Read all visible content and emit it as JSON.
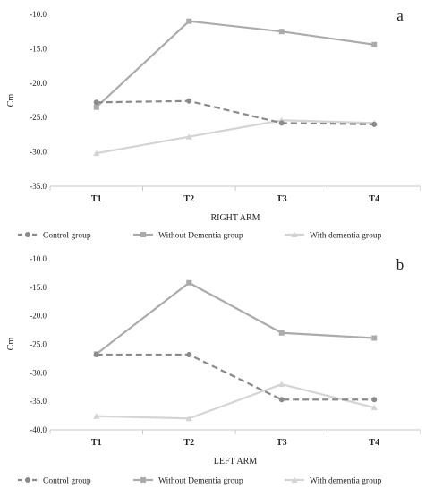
{
  "colors": {
    "control": "#8a8a8a",
    "without_dementia": "#ababab",
    "with_dementia": "#d4d4d4",
    "axis": "#c8c8c8",
    "text": "#222222"
  },
  "chart_data": [
    {
      "type": "line",
      "panel_label": "a",
      "xlabel": "RIGHT ARM",
      "ylabel": "Cm",
      "categories": [
        "T1",
        "T2",
        "T3",
        "T4"
      ],
      "ylim": [
        -35,
        -10
      ],
      "yticks": [
        -10,
        -15,
        -20,
        -25,
        -30,
        -35
      ],
      "ytick_labels": [
        "-10.0",
        "-15.0",
        "-20.0",
        "-25.0",
        "-30.0",
        "-35.0"
      ],
      "grid": false,
      "legend_position": "bottom",
      "series": [
        {
          "name": "Control group",
          "values": [
            -22.8,
            -22.6,
            -25.8,
            -26.0
          ],
          "marker": "circle",
          "style": "dashed",
          "color": "#8a8a8a"
        },
        {
          "name": "Without Dementia group",
          "values": [
            -23.5,
            -11.0,
            -12.5,
            -14.4
          ],
          "marker": "square",
          "style": "solid",
          "color": "#ababab"
        },
        {
          "name": "With dementia group",
          "values": [
            -30.2,
            -27.8,
            -25.4,
            -25.8
          ],
          "marker": "triangle",
          "style": "solid",
          "color": "#d4d4d4"
        }
      ]
    },
    {
      "type": "line",
      "panel_label": "b",
      "xlabel": "LEFT ARM",
      "ylabel": "Cm",
      "categories": [
        "T1",
        "T2",
        "T3",
        "T4"
      ],
      "ylim": [
        -40,
        -10
      ],
      "yticks": [
        -10,
        -15,
        -20,
        -25,
        -30,
        -35,
        -40
      ],
      "ytick_labels": [
        "-10.0",
        "-15.0",
        "-20.0",
        "-25.0",
        "-30.0",
        "-35.0",
        "-40.0"
      ],
      "grid": false,
      "legend_position": "bottom",
      "series": [
        {
          "name": "Control group",
          "values": [
            -26.8,
            -26.8,
            -34.7,
            -34.7
          ],
          "marker": "circle",
          "style": "dashed",
          "color": "#8a8a8a"
        },
        {
          "name": "Without Dementia group",
          "values": [
            -26.7,
            -14.2,
            -23.0,
            -23.9
          ],
          "marker": "square",
          "style": "solid",
          "color": "#ababab"
        },
        {
          "name": "With dementia group",
          "values": [
            -37.6,
            -38.0,
            -32.0,
            -36.1
          ],
          "marker": "triangle",
          "style": "solid",
          "color": "#d4d4d4"
        }
      ]
    }
  ]
}
